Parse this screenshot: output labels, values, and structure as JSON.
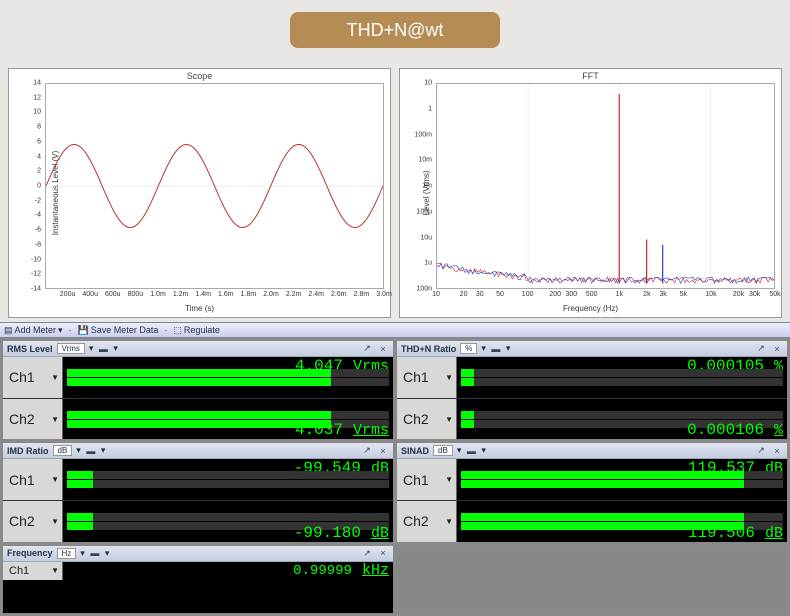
{
  "badge": {
    "text": "THD+N@wt",
    "bg": "#b68c55",
    "fg": "#ffffff"
  },
  "scope_chart": {
    "title": "Scope",
    "type": "line",
    "xlabel": "Time (s)",
    "ylabel": "Instantaneous Level (V)",
    "xlim": [
      0,
      0.003
    ],
    "ylim": [
      -14,
      14
    ],
    "ytick_step": 2,
    "yticks": [
      -14,
      -12,
      -10,
      -8,
      -6,
      -4,
      -2,
      0,
      2,
      4,
      6,
      8,
      10,
      12,
      14
    ],
    "xticks": [
      "200u",
      "400u",
      "600u",
      "800u",
      "1.0m",
      "1.2m",
      "1.4m",
      "1.6m",
      "1.8m",
      "2.0m",
      "2.2m",
      "2.4m",
      "2.6m",
      "2.8m",
      "3.0m"
    ],
    "series": [
      {
        "color": "#b33",
        "amplitude_v": 5.7,
        "frequency_hz": 1000,
        "phase_deg": 0
      }
    ],
    "background_color": "#ffffff",
    "grid_color": "#cccccc",
    "line_width": 1
  },
  "fft_chart": {
    "title": "FFT",
    "type": "line",
    "xlabel": "Frequency (Hz)",
    "ylabel": "Level (Vrms)",
    "xscale": "log",
    "yscale": "log",
    "xlim": [
      10,
      50000
    ],
    "ylim": [
      1e-07,
      10
    ],
    "xticks": [
      "10",
      "20",
      "30",
      "50",
      "100",
      "200",
      "300",
      "500",
      "1k",
      "2k",
      "3k",
      "5k",
      "10k",
      "20k",
      "30k",
      "50k"
    ],
    "yticks": [
      "10",
      "1",
      "100m",
      "10m",
      "1m",
      "100u",
      "10u",
      "1u",
      "100n"
    ],
    "noise_floor_v": 1.5e-07,
    "peaks": [
      {
        "freq_hz": 1000,
        "level_v": 4.0,
        "color": "#cc2222"
      },
      {
        "freq_hz": 2000,
        "level_v": 8e-06,
        "color": "#cc2222"
      },
      {
        "freq_hz": 3000,
        "level_v": 5e-06,
        "color": "#2244cc"
      }
    ],
    "series_colors": [
      "#cc2222",
      "#2244cc"
    ],
    "background_color": "#ffffff",
    "grid_color": "#cccccc"
  },
  "toolbar": {
    "add_meter": "Add Meter",
    "save_meter_data": "Save Meter Data",
    "regulate": "Regulate"
  },
  "meters": {
    "rms": {
      "title": "RMS Level",
      "unit": "Vrms",
      "ch1": {
        "label": "Ch1",
        "value": "4.047",
        "unit": "Vrms",
        "bar_fill_pct": 82,
        "bar_color": "#00ff00"
      },
      "ch2": {
        "label": "Ch2",
        "value": "4.037",
        "unit": "Vrms",
        "bar_fill_pct": 82,
        "bar_color": "#00ff00"
      }
    },
    "thdn": {
      "title": "THD+N Ratio",
      "unit": "%",
      "ch1": {
        "label": "Ch1",
        "value": "0.000105",
        "unit": "%",
        "bar_fill_pct": 4,
        "bar_color": "#00ff00"
      },
      "ch2": {
        "label": "Ch2",
        "value": "0.000106",
        "unit": "%",
        "bar_fill_pct": 4,
        "bar_color": "#00ff00"
      }
    },
    "imd": {
      "title": "IMD Ratio",
      "unit": "dB",
      "ch1": {
        "label": "Ch1",
        "value": "-99.549",
        "unit": "dB",
        "bar_fill_pct": 8,
        "bar_color": "#00ff00"
      },
      "ch2": {
        "label": "Ch2",
        "value": "-99.180",
        "unit": "dB",
        "bar_fill_pct": 8,
        "bar_color": "#00ff00"
      }
    },
    "sinad": {
      "title": "SINAD",
      "unit": "dB",
      "ch1": {
        "label": "Ch1",
        "value": "119.537",
        "unit": "dB",
        "bar_fill_pct": 88,
        "bar_color": "#00ff00"
      },
      "ch2": {
        "label": "Ch2",
        "value": "119.506",
        "unit": "dB",
        "bar_fill_pct": 88,
        "bar_color": "#00ff00"
      }
    },
    "freq": {
      "title": "Frequency",
      "unit": "Hz",
      "ch1": {
        "label": "Ch1",
        "value": "0.99999",
        "unit": "kHz",
        "bar_fill_pct": 60,
        "bar_color": "#00ff00"
      }
    }
  },
  "colors": {
    "page_bg": "#e8e7e3",
    "meter_bg": "#000000",
    "readout_color": "#00ff00",
    "panel_chrome": "#d8d8d6"
  }
}
